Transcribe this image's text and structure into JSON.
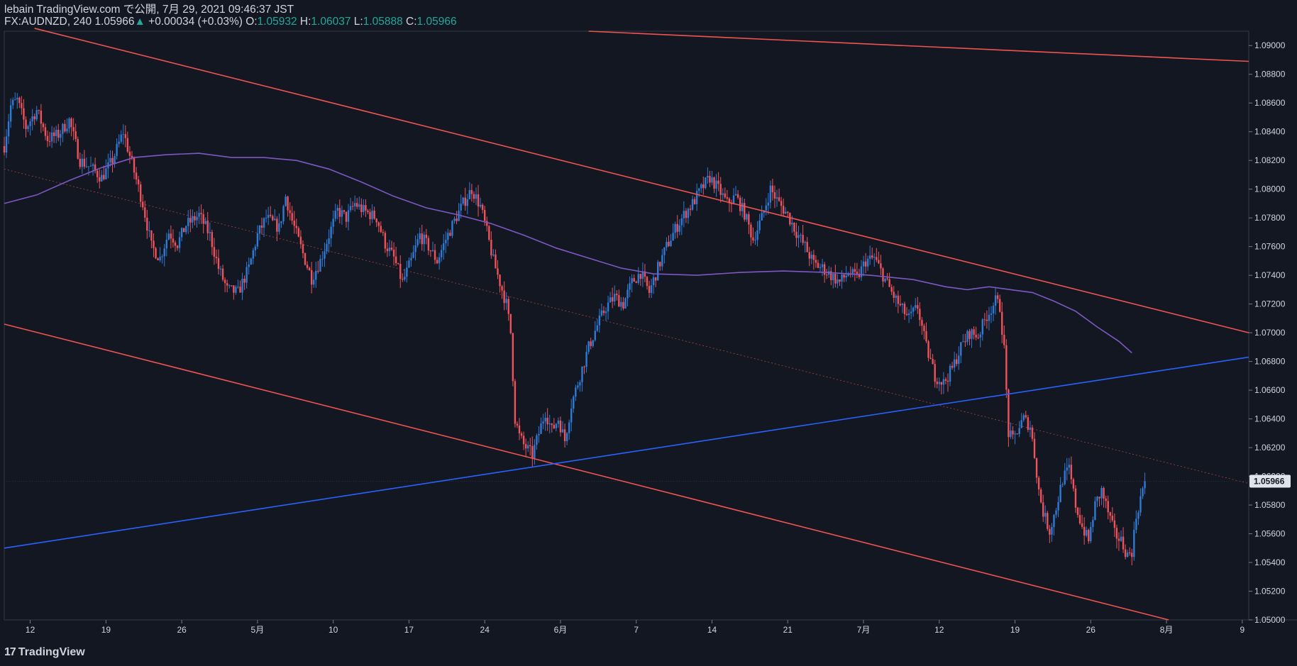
{
  "header": {
    "publisher": "lebain TradingView.com で公開, 7月 29, 2021 09:46:37 JST",
    "symbol": "FX:AUDNZD, 240",
    "last": "1.05966",
    "arrow": "▲",
    "change": "+0.00034 (+0.03%)",
    "o_label": "O:",
    "o": "1.05932",
    "h_label": "H:",
    "h": "1.06037",
    "l_label": "L:",
    "l": "1.05888",
    "c_label": "C:",
    "c": "1.05966"
  },
  "brand": {
    "logo": "17",
    "name": "TradingView"
  },
  "colors": {
    "background": "#131722",
    "up_candle": "#2e7bd6",
    "down_candle": "#f0525a",
    "ma": "#7e57c2",
    "channel": "#ef5350",
    "trend": "#2962ff",
    "text": "#d1d4dc"
  },
  "chart_data": {
    "type": "candlestick",
    "symbol": "FX:AUDNZD",
    "timeframe": "240",
    "ylim": [
      1.05,
      1.091
    ],
    "y_ticks": [
      "1.09000",
      "1.08800",
      "1.08600",
      "1.08400",
      "1.08200",
      "1.08000",
      "1.07800",
      "1.07600",
      "1.07400",
      "1.07200",
      "1.07000",
      "1.06800",
      "1.06600",
      "1.06400",
      "1.06200",
      "1.06000",
      "1.05800",
      "1.05600",
      "1.05400",
      "1.05200",
      "1.05000"
    ],
    "x_ticks": [
      {
        "label": "12",
        "bar": 12
      },
      {
        "label": "19",
        "bar": 47
      },
      {
        "label": "26",
        "bar": 82
      },
      {
        "label": "5月",
        "bar": 117
      },
      {
        "label": "10",
        "bar": 152
      },
      {
        "label": "17",
        "bar": 187
      },
      {
        "label": "24",
        "bar": 222
      },
      {
        "label": "6月",
        "bar": 257
      },
      {
        "label": "7",
        "bar": 292
      },
      {
        "label": "14",
        "bar": 327
      },
      {
        "label": "21",
        "bar": 362
      },
      {
        "label": "7月",
        "bar": 397
      },
      {
        "label": "12",
        "bar": 432
      },
      {
        "label": "19",
        "bar": 467
      },
      {
        "label": "26",
        "bar": 502
      },
      {
        "label": "8月",
        "bar": 537
      },
      {
        "label": "9",
        "bar": 572
      }
    ],
    "bar_range": [
      0,
      575
    ],
    "last_bar": 527,
    "current_price_label": "1.05966",
    "current_price": 1.05966,
    "price_anchors": [
      [
        0,
        1.083
      ],
      [
        3,
        1.0858
      ],
      [
        6,
        1.0862
      ],
      [
        10,
        1.0843
      ],
      [
        15,
        1.0855
      ],
      [
        20,
        1.0835
      ],
      [
        25,
        1.0838
      ],
      [
        30,
        1.0848
      ],
      [
        35,
        1.082
      ],
      [
        40,
        1.0815
      ],
      [
        45,
        1.0808
      ],
      [
        50,
        1.082
      ],
      [
        55,
        1.084
      ],
      [
        60,
        1.0812
      ],
      [
        64,
        1.079
      ],
      [
        68,
        1.076
      ],
      [
        72,
        1.0752
      ],
      [
        76,
        1.077
      ],
      [
        80,
        1.0762
      ],
      [
        84,
        1.0775
      ],
      [
        90,
        1.0782
      ],
      [
        95,
        1.0768
      ],
      [
        99,
        1.0745
      ],
      [
        103,
        1.073
      ],
      [
        108,
        1.0728
      ],
      [
        113,
        1.0745
      ],
      [
        117,
        1.0768
      ],
      [
        121,
        1.078
      ],
      [
        127,
        1.0773
      ],
      [
        130,
        1.0795
      ],
      [
        133,
        1.0778
      ],
      [
        138,
        1.0755
      ],
      [
        142,
        1.0738
      ],
      [
        146,
        1.075
      ],
      [
        150,
        1.0768
      ],
      [
        154,
        1.0785
      ],
      [
        158,
        1.078
      ],
      [
        162,
        1.079
      ],
      [
        166,
        1.0785
      ],
      [
        172,
        1.078
      ],
      [
        176,
        1.0762
      ],
      [
        180,
        1.0752
      ],
      [
        184,
        1.0735
      ],
      [
        188,
        1.075
      ],
      [
        192,
        1.0768
      ],
      [
        196,
        1.076
      ],
      [
        200,
        1.075
      ],
      [
        204,
        1.0765
      ],
      [
        208,
        1.0778
      ],
      [
        212,
        1.079
      ],
      [
        216,
        1.08
      ],
      [
        220,
        1.0788
      ],
      [
        223,
        1.077
      ],
      [
        226,
        1.075
      ],
      [
        229,
        1.0735
      ],
      [
        232,
        1.072
      ],
      [
        234,
        1.07
      ],
      [
        236,
        1.064
      ],
      [
        238,
        1.0628
      ],
      [
        240,
        1.0622
      ],
      [
        244,
        1.0615
      ],
      [
        247,
        1.063
      ],
      [
        250,
        1.0645
      ],
      [
        253,
        1.0632
      ],
      [
        256,
        1.064
      ],
      [
        259,
        1.0625
      ],
      [
        262,
        1.065
      ],
      [
        266,
        1.067
      ],
      [
        270,
        1.069
      ],
      [
        274,
        1.0705
      ],
      [
        278,
        1.0718
      ],
      [
        282,
        1.0725
      ],
      [
        286,
        1.072
      ],
      [
        290,
        1.0735
      ],
      [
        294,
        1.0742
      ],
      [
        298,
        1.0728
      ],
      [
        302,
        1.0745
      ],
      [
        306,
        1.076
      ],
      [
        310,
        1.0772
      ],
      [
        314,
        1.0782
      ],
      [
        318,
        1.079
      ],
      [
        322,
        1.08
      ],
      [
        326,
        1.0808
      ],
      [
        330,
        1.08
      ],
      [
        334,
        1.079
      ],
      [
        338,
        1.0795
      ],
      [
        342,
        1.0783
      ],
      [
        346,
        1.0765
      ],
      [
        350,
        1.078
      ],
      [
        354,
        1.08
      ],
      [
        358,
        1.079
      ],
      [
        362,
        1.0782
      ],
      [
        366,
        1.077
      ],
      [
        370,
        1.076
      ],
      [
        374,
        1.0748
      ],
      [
        378,
        1.0745
      ],
      [
        382,
        1.074
      ],
      [
        386,
        1.0735
      ],
      [
        390,
        1.0742
      ],
      [
        394,
        1.0738
      ],
      [
        398,
        1.075
      ],
      [
        402,
        1.0752
      ],
      [
        406,
        1.074
      ],
      [
        410,
        1.0728
      ],
      [
        414,
        1.0718
      ],
      [
        418,
        1.071
      ],
      [
        422,
        1.0718
      ],
      [
        426,
        1.069
      ],
      [
        430,
        1.067
      ],
      [
        434,
        1.0665
      ],
      [
        438,
        1.0675
      ],
      [
        442,
        1.069
      ],
      [
        446,
        1.07
      ],
      [
        450,
        1.0698
      ],
      [
        454,
        1.0712
      ],
      [
        458,
        1.0722
      ],
      [
        460,
        1.0718
      ],
      [
        462,
        1.0688
      ],
      [
        464,
        1.063
      ],
      [
        466,
        1.0625
      ],
      [
        468,
        1.0632
      ],
      [
        471,
        1.064
      ],
      [
        474,
        1.0635
      ],
      [
        476,
        1.0615
      ],
      [
        478,
        1.059
      ],
      [
        480,
        1.0575
      ],
      [
        483,
        1.0562
      ],
      [
        486,
        1.0578
      ],
      [
        489,
        1.0598
      ],
      [
        492,
        1.0605
      ],
      [
        495,
        1.058
      ],
      [
        498,
        1.0565
      ],
      [
        501,
        1.0555
      ],
      [
        504,
        1.058
      ],
      [
        507,
        1.059
      ],
      [
        510,
        1.0575
      ],
      [
        513,
        1.056
      ],
      [
        516,
        1.0555
      ],
      [
        519,
        1.0545
      ],
      [
        521,
        1.0548
      ],
      [
        523,
        1.0572
      ],
      [
        525,
        1.0585
      ],
      [
        527,
        1.05966
      ]
    ],
    "ma_anchors": [
      [
        0,
        1.079
      ],
      [
        15,
        1.0796
      ],
      [
        30,
        1.0806
      ],
      [
        45,
        1.0815
      ],
      [
        60,
        1.0822
      ],
      [
        75,
        1.0824
      ],
      [
        90,
        1.0825
      ],
      [
        105,
        1.0822
      ],
      [
        120,
        1.0822
      ],
      [
        135,
        1.082
      ],
      [
        150,
        1.0814
      ],
      [
        165,
        1.0805
      ],
      [
        180,
        1.0795
      ],
      [
        195,
        1.0787
      ],
      [
        210,
        1.0782
      ],
      [
        225,
        1.0776
      ],
      [
        240,
        1.0768
      ],
      [
        255,
        1.0759
      ],
      [
        270,
        1.0752
      ],
      [
        285,
        1.0745
      ],
      [
        300,
        1.0741
      ],
      [
        320,
        1.074
      ],
      [
        340,
        1.0742
      ],
      [
        360,
        1.0743
      ],
      [
        380,
        1.0742
      ],
      [
        400,
        1.074
      ],
      [
        420,
        1.0737
      ],
      [
        435,
        1.0732
      ],
      [
        445,
        1.073
      ],
      [
        455,
        1.0732
      ],
      [
        465,
        1.073
      ],
      [
        475,
        1.0728
      ],
      [
        485,
        1.0722
      ],
      [
        495,
        1.0715
      ],
      [
        505,
        1.0704
      ],
      [
        515,
        1.0694
      ],
      [
        521,
        1.0686
      ]
    ],
    "lines": [
      {
        "name": "upper-channel",
        "color": "#ef5350",
        "from": [
          14,
          1.0912
        ],
        "to": [
          575,
          1.07
        ]
      },
      {
        "name": "lower-channel",
        "color": "#ef5350",
        "from": [
          0,
          1.0706
        ],
        "to": [
          538,
          1.05
        ]
      },
      {
        "name": "top-resistance",
        "color": "#ef5350",
        "from": [
          270,
          1.091
        ],
        "to": [
          575,
          1.0889
        ]
      },
      {
        "name": "mid-channel",
        "color": "#ef5350",
        "dashed": true,
        "from": [
          0,
          1.0814
        ],
        "to": [
          575,
          1.0595
        ]
      },
      {
        "name": "rising-trendline",
        "color": "#2962ff",
        "from": [
          0,
          1.055
        ],
        "to": [
          575,
          1.0683
        ]
      }
    ]
  }
}
